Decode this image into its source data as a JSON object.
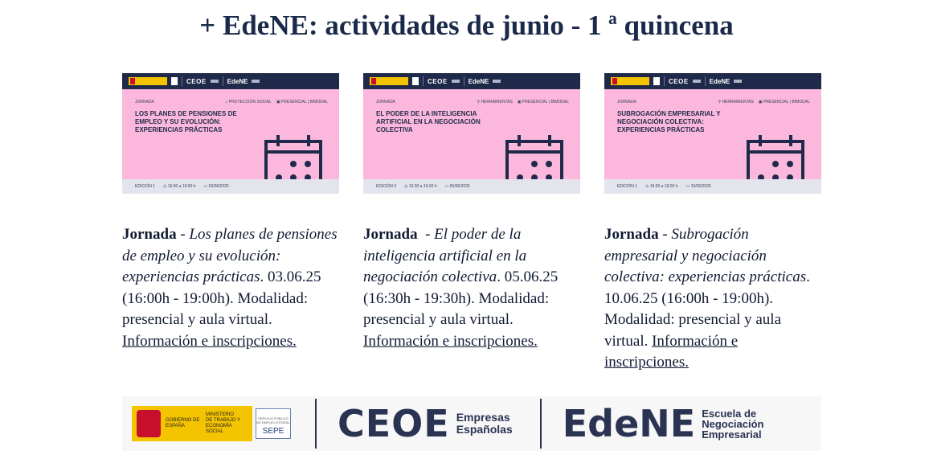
{
  "title": "+ EdeNE: actividades de junio - 1 ª quincena",
  "colors": {
    "navy": "#1f2a4a",
    "pink": "#fbb8dc",
    "footer_bg": "#f7f7f7"
  },
  "cards": [
    {
      "banner": {
        "logo_ceoe": "CEOE",
        "logo_edene": "EdeNE",
        "type_tag": "JORNADA",
        "meta_1": "⌂ PROTECCIÓN SOCIAL",
        "meta_2": "▣ PRESENCIAL | BIMODAL",
        "headline": "LOS PLANES DE PENSIONES DE EMPLEO Y SU EVOLUCIÓN: EXPERIENCIAS PRÁCTICAS",
        "edition": "EDICIÓN 1",
        "time": "◷ 16:00 a 19:00 h",
        "date": "▭ 03/06/2025",
        "icon": "calendar-icon"
      },
      "kind": "Jornada",
      "dash": " - ",
      "topic": "Los planes de pensiones de empleo y su evolución: experiencias prácticas",
      "details": ". 03.06.25 (16:00h - 19:00h). Modalidad: presencial y aula virtual.  ",
      "link": "Información e inscripciones."
    },
    {
      "banner": {
        "logo_ceoe": "CEOE",
        "logo_edene": "EdeNE",
        "type_tag": "JORNADA",
        "meta_1": "⚲ HERRAMIENTAS",
        "meta_2": "▣ PRESENCIAL | BIMODAL",
        "headline": "EL PODER DE LA INTELIGENCIA ARTIFICIAL EN LA NEGOCIACIÓN COLECTIVA",
        "edition": "EDICIÓN 3",
        "time": "◷ 16:30 a 19:30 h",
        "date": "▭ 05/06/2025",
        "icon": "calendar-icon"
      },
      "kind": "Jornada",
      "dash": "  - ",
      "topic": "El poder de la inteligencia artificial en la negociación colectiva",
      "details": ". 05.06.25 (16:30h - 19:30h). Modalidad: presencial y aula virtual.  ",
      "link": "Información e inscripciones."
    },
    {
      "banner": {
        "logo_ceoe": "CEOE",
        "logo_edene": "EdeNE",
        "type_tag": "JORNADA",
        "meta_1": "⚲ HERRAMIENTAS",
        "meta_2": "▣ PRESENCIAL | BIMODAL",
        "headline": "SUBROGACIÓN EMPRESARIAL Y NEGOCIACIÓN COLECTIVA: EXPERIENCIAS PRÁCTICAS",
        "edition": "EDICIÓN 1",
        "time": "◷ 16:00 a 19:00 h",
        "date": "▭ 10/06/2025",
        "icon": "calendar-icon"
      },
      "kind": "Jornada",
      "dash": " - ",
      "topic": "Subrogación empresarial y negociación colectiva: experiencias prácticas",
      "details": ". 10.06.25 (16:00h - 19:00h). Modalidad: presencial y aula virtual. ",
      "link": "Información e inscripciones."
    }
  ],
  "footer": {
    "gov_text": "GOBIERNO DE ESPAÑA",
    "ministry_text": "MINISTERIO DE TRABAJO Y ECONOMÍA SOCIAL",
    "sepe_small": "SERVICIO PÚBLICO DE EMPLEO ESTATAL",
    "sepe_word": "SEPE",
    "ceoe": "CEOE",
    "ceoe_sub": "Empresas Españolas",
    "edene": "EdeNE",
    "edene_sub": "Escuela de Negociación Empresarial"
  }
}
